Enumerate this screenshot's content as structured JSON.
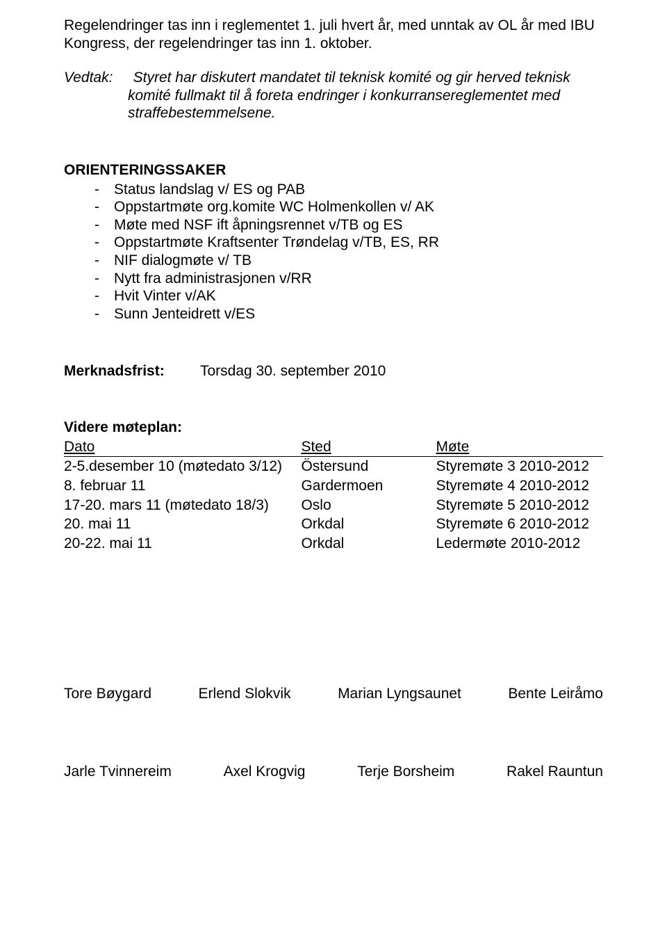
{
  "intro_paragraph": "Regelendringer tas inn i reglementet 1. juli hvert år, med unntak av OL år med IBU Kongress, der regelendringer tas inn 1. oktober.",
  "vedtak": {
    "label": "Vedtak:",
    "text": "Styret har diskutert mandatet til teknisk komité og gir herved teknisk komité fullmakt til å foreta endringer i konkurransereglementet med straffebestemmelsene."
  },
  "orienteringssaker": {
    "heading": "ORIENTERINGSSAKER",
    "items": [
      "Status landslag v/ ES og PAB",
      "Oppstartmøte org.komite WC Holmenkollen v/ AK",
      "Møte med NSF ift åpningsrennet v/TB og ES",
      "Oppstartmøte Kraftsenter Trøndelag v/TB, ES, RR",
      "NIF dialogmøte v/ TB",
      "Nytt fra administrasjonen v/RR",
      "Hvit Vinter v/AK",
      "Sunn Jenteidrett v/ES"
    ]
  },
  "merknadsfrist": {
    "label": "Merknadsfrist:",
    "value": "Torsdag 30. september 2010"
  },
  "moteplan": {
    "heading": "Videre møteplan:",
    "columns": [
      "Dato",
      "Sted",
      "Møte"
    ],
    "rows": [
      [
        "2-5.desember 10 (møtedato 3/12)",
        "Östersund",
        "Styremøte 3 2010-2012"
      ],
      [
        "8. februar 11",
        "Gardermoen",
        "Styremøte 4 2010-2012"
      ],
      [
        "17-20. mars 11 (møtedato 18/3)",
        "Oslo",
        "Styremøte 5  2010-2012"
      ],
      [
        "20. mai 11",
        "Orkdal",
        "Styremøte 6 2010-2012"
      ],
      [
        "20-22. mai 11",
        "Orkdal",
        "Ledermøte 2010-2012"
      ]
    ]
  },
  "signatures": {
    "row1": [
      "Tore Bøygard",
      "Erlend Slokvik",
      "Marian Lyngsaunet",
      "Bente Leiråmo"
    ],
    "row2": [
      "Jarle Tvinnereim",
      "Axel Krogvig",
      "Terje Borsheim",
      "Rakel Rauntun"
    ]
  }
}
